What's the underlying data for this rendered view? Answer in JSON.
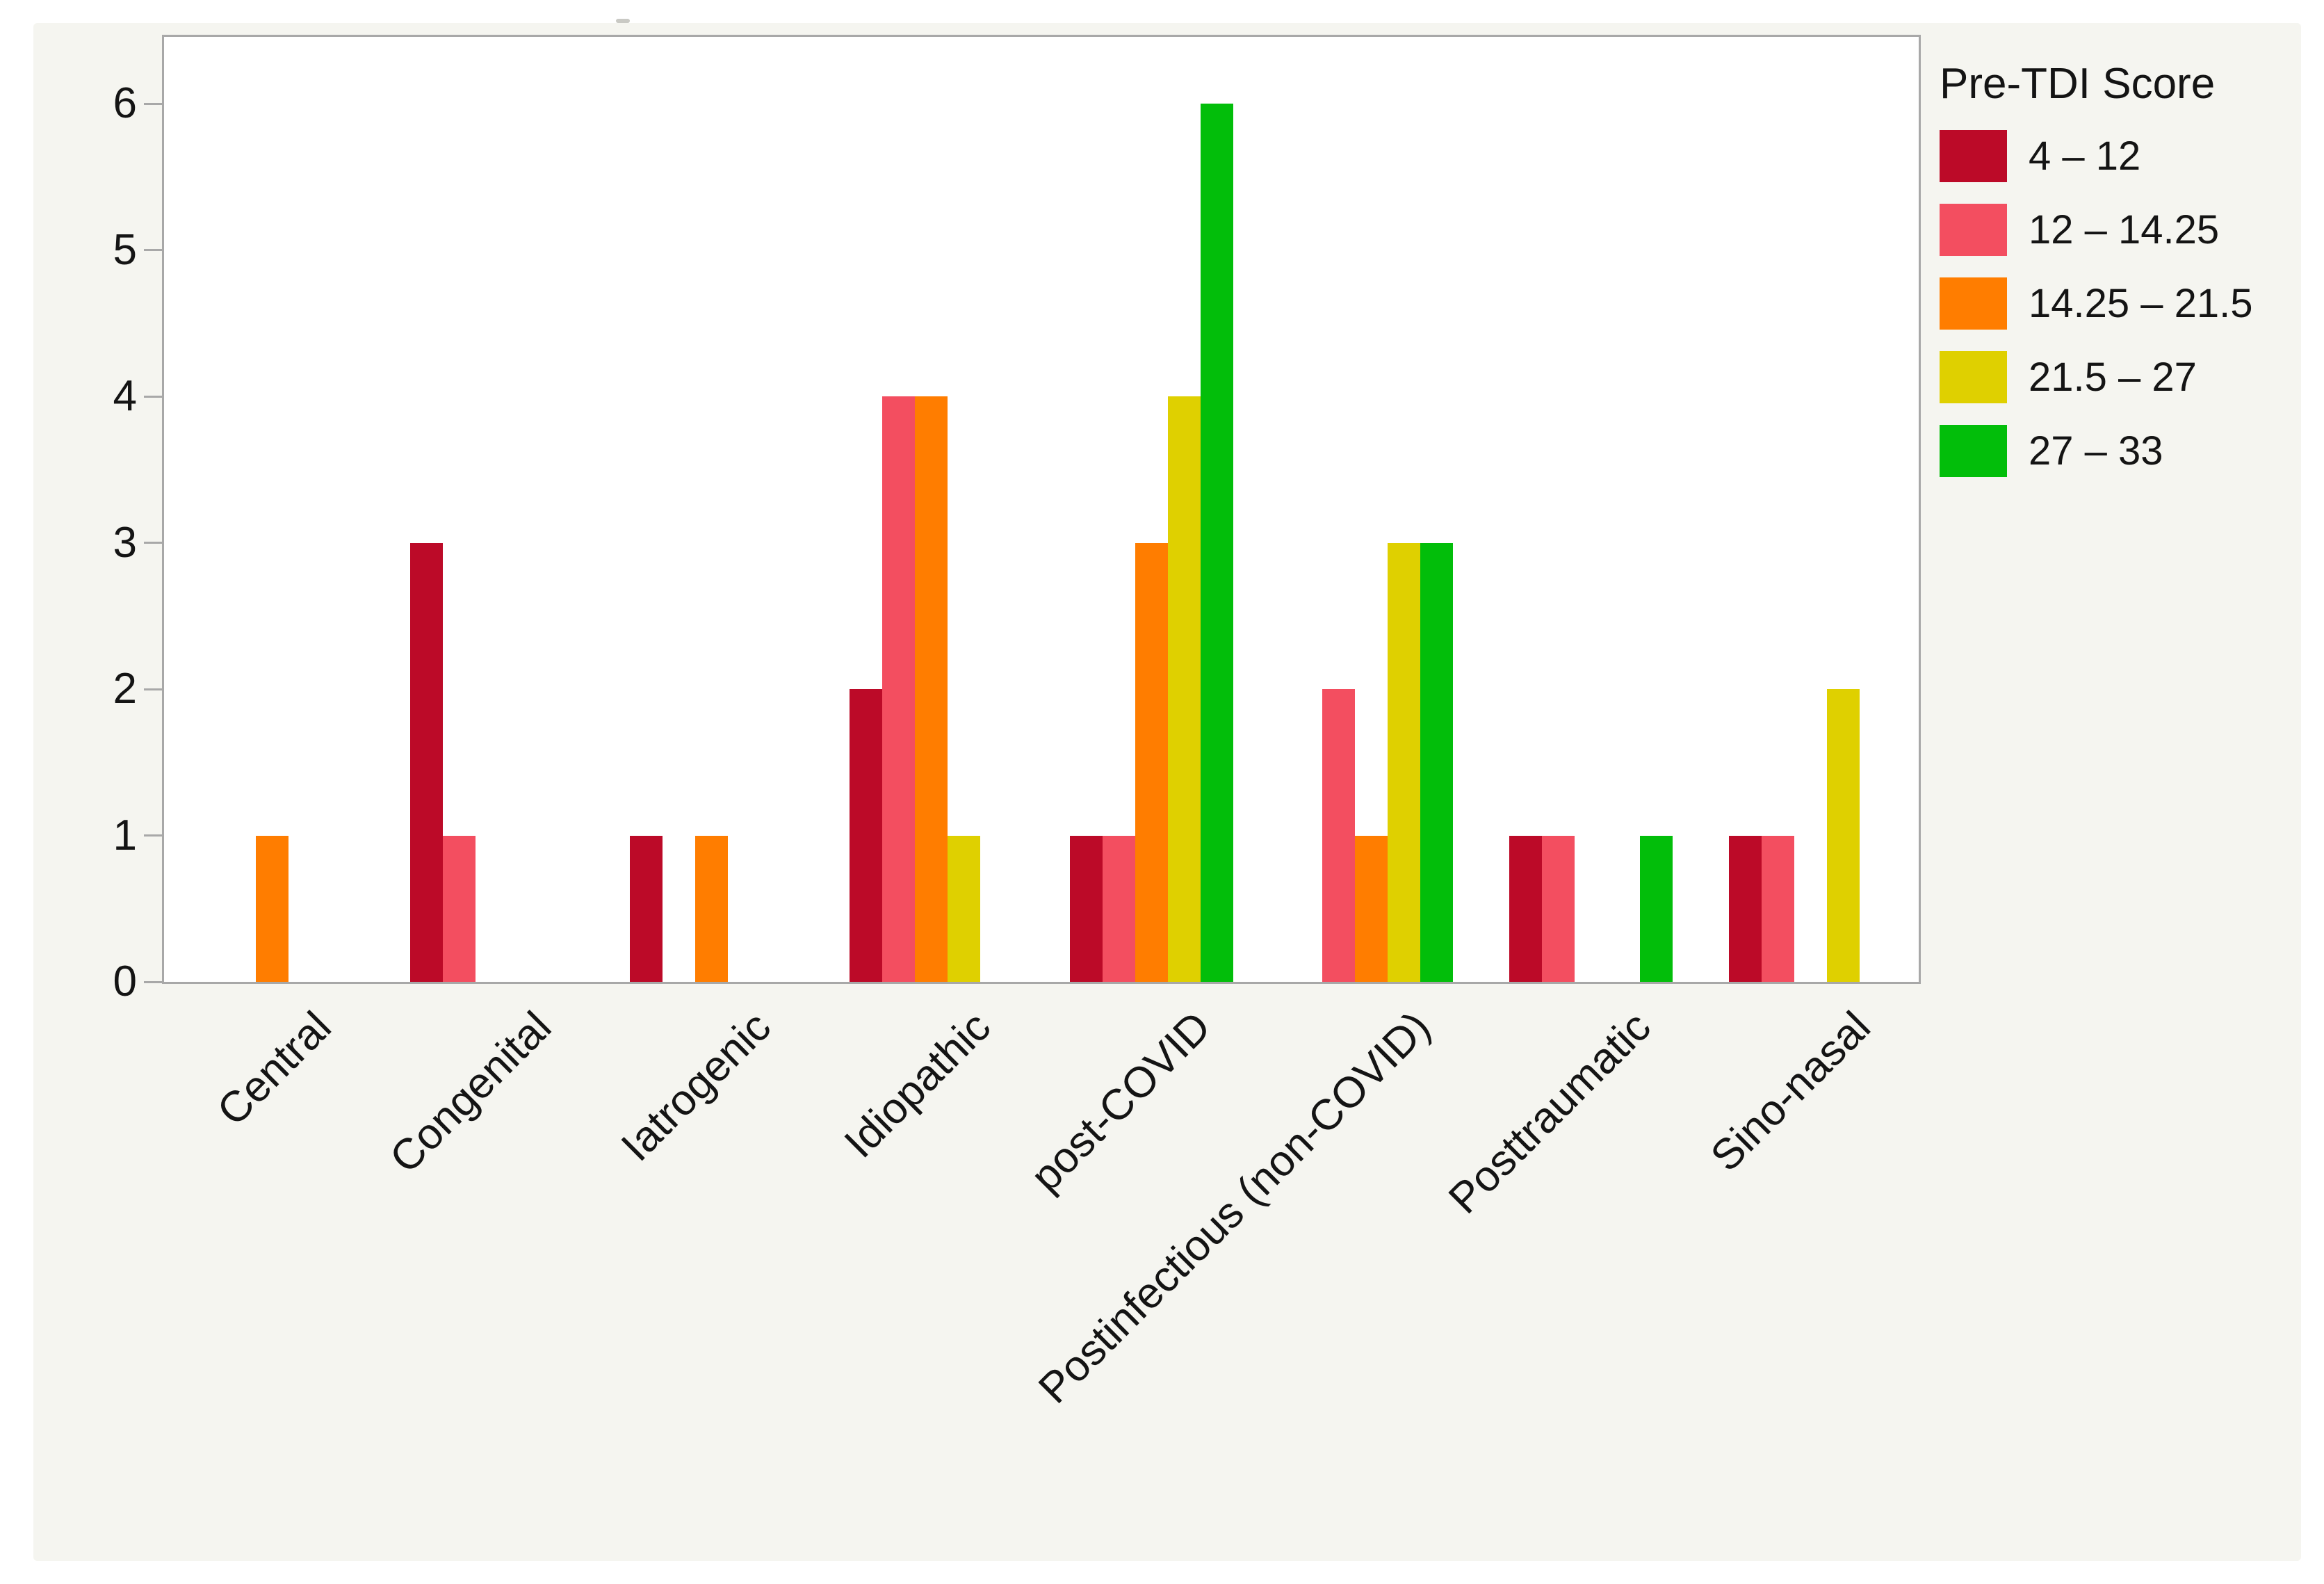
{
  "window": {
    "outer_background": "#ffffff",
    "panel_background": "#f5f5f0",
    "frame_color": "#a8a8a8",
    "text_color": "#141414"
  },
  "chart_data": {
    "type": "bar",
    "bar_mode": "grouped",
    "title": "",
    "xlabel": "",
    "ylabel": "",
    "legend_title": "Pre-TDI Score",
    "legend_position": "right",
    "grid": false,
    "ylim": [
      0,
      6.45
    ],
    "yticks": [
      "0",
      "1",
      "2",
      "3",
      "4",
      "5",
      "6"
    ],
    "categories": [
      "Central",
      "Congenital",
      "Iatrogenic",
      "Idiopathic",
      "post-COVID",
      "Postinfectious (non-COVID)",
      "Posttraumatic",
      "Sino-nasal"
    ],
    "series": [
      {
        "name": "4 – 12",
        "color": "#bc0a28",
        "values": [
          0,
          3,
          1,
          2,
          1,
          0,
          1,
          1
        ]
      },
      {
        "name": "12 – 14.25",
        "color": "#f34e60",
        "values": [
          0,
          1,
          0,
          4,
          1,
          2,
          1,
          1
        ]
      },
      {
        "name": "14.25 – 21.5",
        "color": "#ff7d00",
        "values": [
          1,
          0,
          1,
          4,
          3,
          1,
          0,
          0
        ]
      },
      {
        "name": "21.5 – 27",
        "color": "#dfd000",
        "values": [
          0,
          0,
          0,
          1,
          4,
          3,
          0,
          2
        ]
      },
      {
        "name": "27 – 33",
        "color": "#02be0a",
        "values": [
          0,
          0,
          0,
          0,
          6,
          3,
          1,
          0
        ]
      }
    ]
  }
}
